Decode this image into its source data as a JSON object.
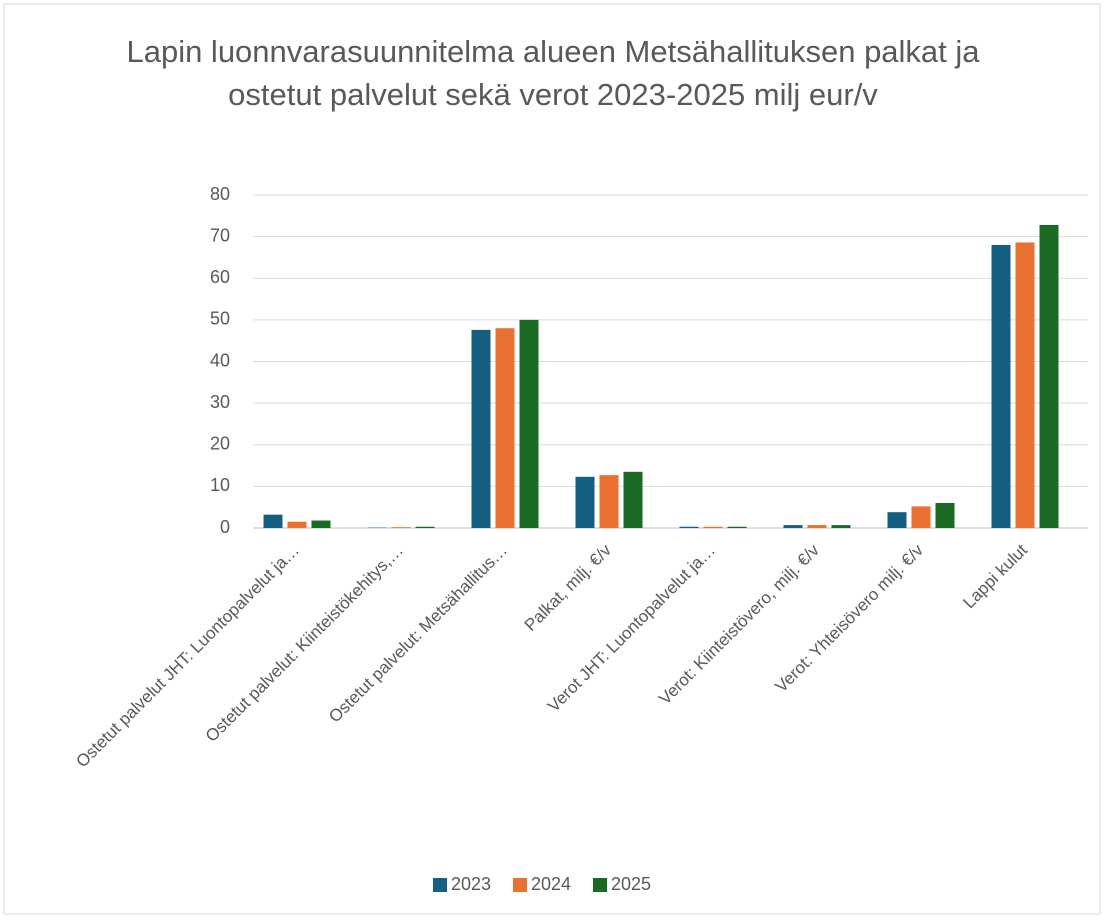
{
  "chart_data": {
    "type": "bar",
    "title": "Lapin luonnvarasuunnitelma alueen Metsähallituksen palkat ja ostetut palvelut sekä verot 2023-2025 milj eur/v",
    "categories": [
      "Ostetut palvelut JHT: Luontopalvelut ja…",
      "Ostetut palvelut: Kiinteistökehitys,…",
      "Ostetut palvelut: Metsähallitus…",
      "Palkat, milj. €/v",
      "Verot JHT: Luontopalvelut ja…",
      "Verot: Kiinteistövero, milj. €/v",
      "Verot: Yhteisövero milj. €/v",
      "Lappi kulut"
    ],
    "series": [
      {
        "name": "2023",
        "color": "#156082",
        "values": [
          3.2,
          0.1,
          47.6,
          12.3,
          0.3,
          0.7,
          3.8,
          68
        ]
      },
      {
        "name": "2024",
        "color": "#e97132",
        "values": [
          1.5,
          0.2,
          48,
          12.7,
          0.3,
          0.7,
          5.2,
          68.6
        ]
      },
      {
        "name": "2025",
        "color": "#196b24",
        "values": [
          1.8,
          0.3,
          50,
          13.5,
          0.3,
          0.7,
          6,
          72.8
        ]
      }
    ],
    "ylim": [
      0,
      80
    ],
    "yticks": [
      0,
      10,
      20,
      30,
      40,
      50,
      60,
      70,
      80
    ],
    "grid": true,
    "legend": "bottom"
  }
}
